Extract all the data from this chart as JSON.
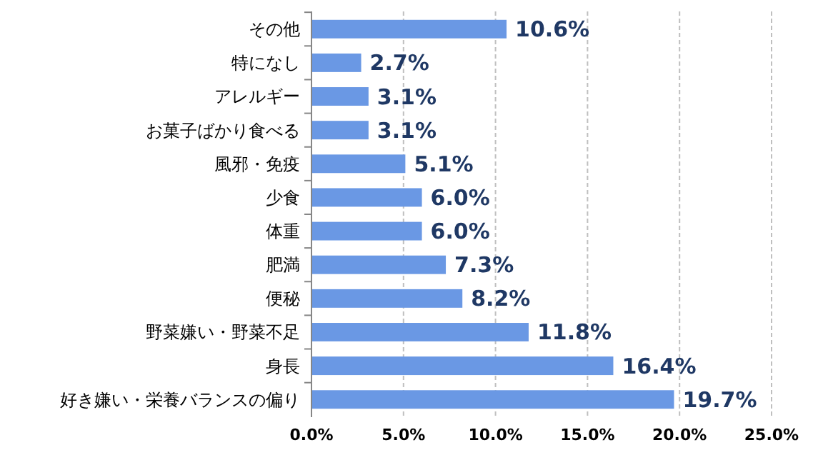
{
  "chart_data": {
    "type": "bar",
    "orientation": "horizontal",
    "categories": [
      "その他",
      "特になし",
      "アレルギー",
      "お菓子ばかり食べる",
      "風邪・免疫",
      "少食",
      "体重",
      "肥満",
      "便秘",
      "野菜嫌い・野菜不足",
      "身長",
      "好き嫌い・栄養バランスの偏り"
    ],
    "values": [
      10.6,
      2.7,
      3.1,
      3.1,
      5.1,
      6.0,
      6.0,
      7.3,
      8.2,
      11.8,
      16.4,
      19.7
    ],
    "value_labels": [
      "10.6%",
      "2.7%",
      "3.1%",
      "3.1%",
      "5.1%",
      "6.0%",
      "6.0%",
      "7.3%",
      "8.2%",
      "11.8%",
      "16.4%",
      "19.7%"
    ],
    "color": "#6a98e4",
    "xlim": [
      0,
      25
    ],
    "xticks": [
      {
        "value": 0,
        "label": "0.0%"
      },
      {
        "value": 5,
        "label": "5.0%"
      },
      {
        "value": 10,
        "label": "10.0%"
      },
      {
        "value": 15,
        "label": "15.0%"
      },
      {
        "value": 20,
        "label": "20.0%"
      },
      {
        "value": 25,
        "label": "25.0%"
      }
    ],
    "grid": "x"
  }
}
